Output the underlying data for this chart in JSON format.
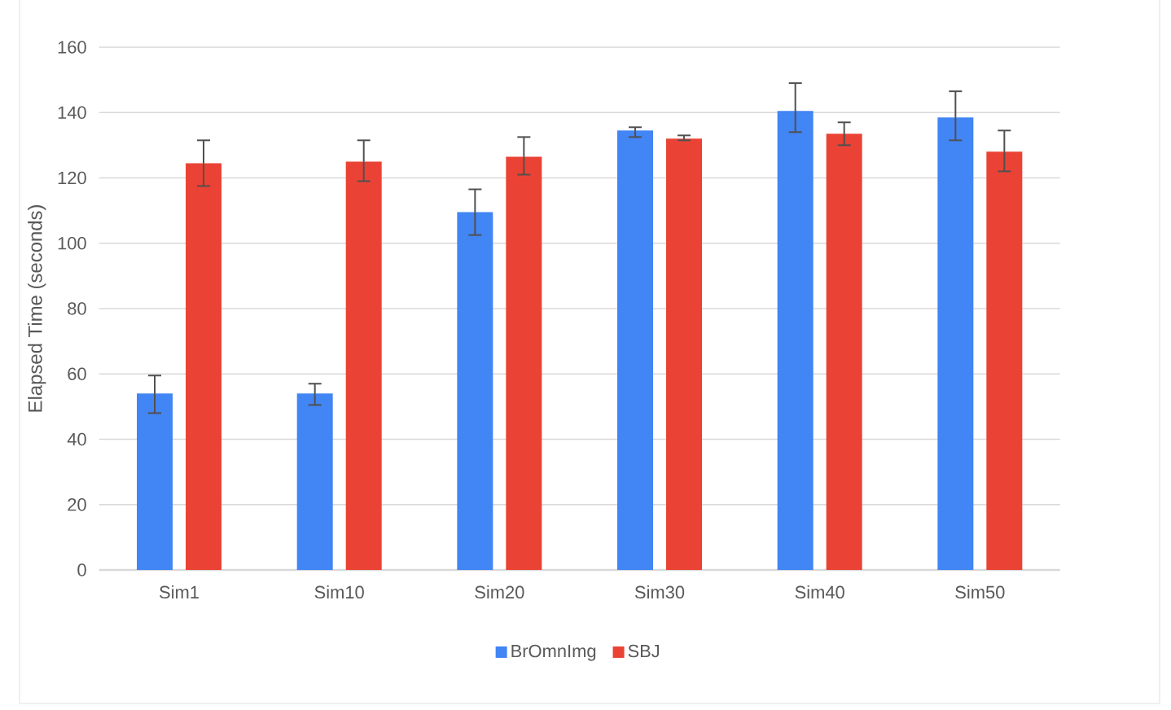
{
  "chart_data": {
    "type": "bar",
    "ylabel": "Elapsed Time (seconds)",
    "categories": [
      "Sim1",
      "Sim10",
      "Sim20",
      "Sim30",
      "Sim40",
      "Sim50"
    ],
    "series": [
      {
        "name": "BrOmnImg",
        "color": "#4285f4",
        "values": [
          54,
          54,
          109.5,
          134.5,
          140.5,
          138.5
        ],
        "errors": [
          [
            48,
            59.5
          ],
          [
            50.5,
            57
          ],
          [
            102.5,
            116.5
          ],
          [
            132.5,
            135.5
          ],
          [
            134,
            149
          ],
          [
            131.5,
            146.5
          ]
        ]
      },
      {
        "name": "SBJ",
        "color": "#ea4335",
        "values": [
          124.5,
          125,
          126.5,
          132,
          133.5,
          128
        ],
        "errors": [
          [
            117.5,
            131.5
          ],
          [
            119,
            131.5
          ],
          [
            121,
            132.5
          ],
          [
            131.5,
            133
          ],
          [
            130,
            137
          ],
          [
            122,
            134.5
          ]
        ]
      }
    ],
    "ylim": [
      0,
      160
    ],
    "yticks": [
      0,
      20,
      40,
      60,
      80,
      100,
      120,
      140,
      160
    ],
    "grid": "y",
    "legend": "bottom"
  }
}
